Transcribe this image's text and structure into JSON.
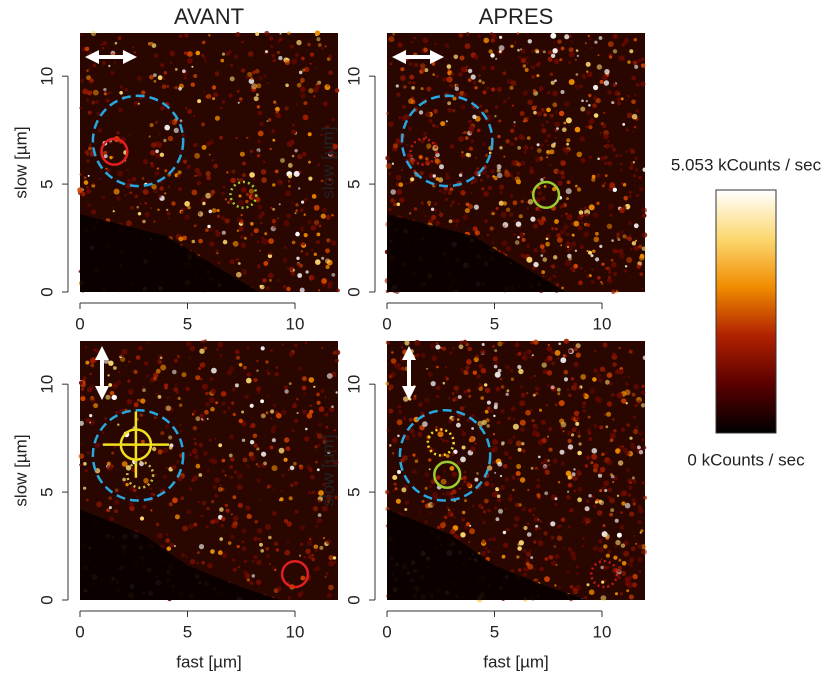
{
  "chart_data": [
    {
      "type": "heatmap",
      "title": "AVANT",
      "ylabel": "slow [µm]",
      "xlim": [
        0,
        12
      ],
      "ylim": [
        0,
        12
      ],
      "xticks": [
        0,
        5,
        10
      ],
      "yticks": [
        0,
        5,
        10
      ],
      "arrow": "horizontal",
      "markers": [
        {
          "x": 2.7,
          "y": 7.0,
          "r": 2.1,
          "color": "#29a8e0",
          "style": "dashed"
        },
        {
          "x": 1.6,
          "y": 6.5,
          "r": 0.6,
          "color": "#e02020",
          "style": "solid"
        },
        {
          "x": 7.6,
          "y": 4.5,
          "r": 0.6,
          "color": "#9acd32",
          "style": "dotted"
        }
      ]
    },
    {
      "type": "heatmap",
      "title": "APRES",
      "ylabel": "slow [µm]",
      "xlim": [
        0,
        12
      ],
      "ylim": [
        0,
        12
      ],
      "xticks": [
        0,
        5,
        10
      ],
      "yticks": [
        0,
        5,
        10
      ],
      "arrow": "horizontal",
      "markers": [
        {
          "x": 2.8,
          "y": 7.0,
          "r": 2.1,
          "color": "#29a8e0",
          "style": "dashed"
        },
        {
          "x": 1.7,
          "y": 6.5,
          "r": 0.6,
          "color": "#c01818",
          "style": "dotted"
        },
        {
          "x": 7.4,
          "y": 4.5,
          "r": 0.6,
          "color": "#9acd32",
          "style": "solid"
        }
      ]
    },
    {
      "type": "heatmap",
      "xlabel": "fast [µm]",
      "ylabel": "slow [µm]",
      "xlim": [
        0,
        12
      ],
      "ylim": [
        0,
        12
      ],
      "xticks": [
        0,
        5,
        10
      ],
      "yticks": [
        0,
        5,
        10
      ],
      "arrow": "vertical",
      "markers": [
        {
          "x": 2.7,
          "y": 6.7,
          "r": 2.1,
          "color": "#29a8e0",
          "style": "dashed"
        },
        {
          "x": 2.6,
          "y": 7.2,
          "r": 0.7,
          "color": "#f0e020",
          "style": "cross"
        },
        {
          "x": 2.8,
          "y": 5.8,
          "r": 0.6,
          "color": "#c8c040",
          "style": "dotted"
        },
        {
          "x": 10.0,
          "y": 1.2,
          "r": 0.6,
          "color": "#e02020",
          "style": "solid"
        }
      ]
    },
    {
      "type": "heatmap",
      "xlabel": "fast [µm]",
      "ylabel": "slow [µm]",
      "xlim": [
        0,
        12
      ],
      "ylim": [
        0,
        12
      ],
      "xticks": [
        0,
        5,
        10
      ],
      "yticks": [
        0,
        5,
        10
      ],
      "arrow": "vertical",
      "markers": [
        {
          "x": 2.7,
          "y": 6.7,
          "r": 2.1,
          "color": "#29a8e0",
          "style": "dashed"
        },
        {
          "x": 2.5,
          "y": 7.3,
          "r": 0.6,
          "color": "#f0e020",
          "style": "dotted"
        },
        {
          "x": 2.8,
          "y": 5.8,
          "r": 0.6,
          "color": "#9acd32",
          "style": "solid"
        },
        {
          "x": 10.1,
          "y": 1.2,
          "r": 0.6,
          "color": "#c01818",
          "style": "dotted"
        }
      ]
    }
  ],
  "colorbar": {
    "ticks": [
      {
        "value": 5.053,
        "label": "5.053 kCounts / sec"
      },
      {
        "value": 0,
        "label": "0 kCounts / sec"
      }
    ],
    "colors": [
      "#000000",
      "#5a0000",
      "#b02000",
      "#f08c00",
      "#fcd870",
      "#ffffff"
    ]
  }
}
